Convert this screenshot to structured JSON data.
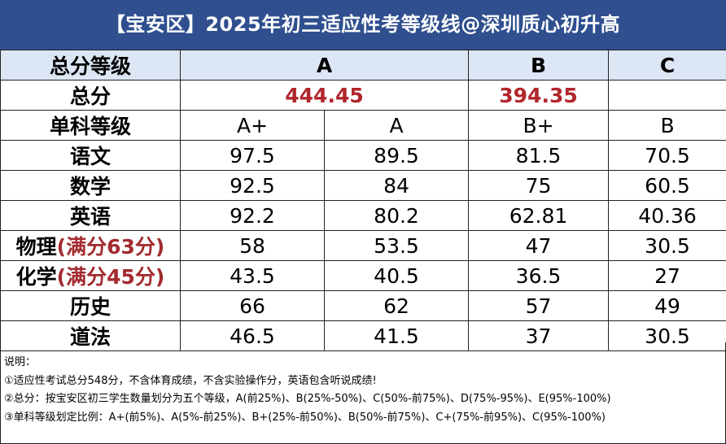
{
  "title": "【宝安区】2025年初三适应性考等级线@深圳质心初升高",
  "header": {
    "label": "总分等级",
    "grades": [
      "A",
      "B",
      "C"
    ]
  },
  "total": {
    "label": "总分",
    "a": "444.45",
    "b": "394.35",
    "c": ""
  },
  "single": {
    "label": "单科等级",
    "levels": [
      "A+",
      "A",
      "B+",
      "B"
    ]
  },
  "subjects": [
    {
      "name": "语文",
      "note": "",
      "values": [
        "97.5",
        "89.5",
        "81.5",
        "70.5"
      ]
    },
    {
      "name": "数学",
      "note": "",
      "values": [
        "92.5",
        "84",
        "75",
        "60.5"
      ]
    },
    {
      "name": "英语",
      "note": "",
      "values": [
        "92.2",
        "80.2",
        "62.81",
        "40.36"
      ]
    },
    {
      "name": "物理",
      "note": "(满分63分)",
      "values": [
        "58",
        "53.5",
        "47",
        "30.5"
      ]
    },
    {
      "name": "化学",
      "note": "(满分45分)",
      "values": [
        "43.5",
        "40.5",
        "36.5",
        "27"
      ]
    },
    {
      "name": "历史",
      "note": "",
      "values": [
        "66",
        "62",
        "57",
        "49"
      ]
    },
    {
      "name": "道法",
      "note": "",
      "values": [
        "46.5",
        "41.5",
        "37",
        "30.5"
      ]
    }
  ],
  "notes": {
    "heading": "说明：",
    "lines": [
      "①适应性考试总分548分，不含体育成绩，不含实验操作分，英语包含听说成绩!",
      "②总分：按宝安区初三学生数量划分为五个等级，A(前25%)、B(25%-50%)、C(50%-前75%)、D(75%-95%)、E(95%-100%)",
      "③单科等级划定比例：A+(前5%)、A(5%-前25%)、B+(25%-前50%)、B(50%-前75%)、C+(75%-前95%)、C(95%-100%)"
    ]
  }
}
